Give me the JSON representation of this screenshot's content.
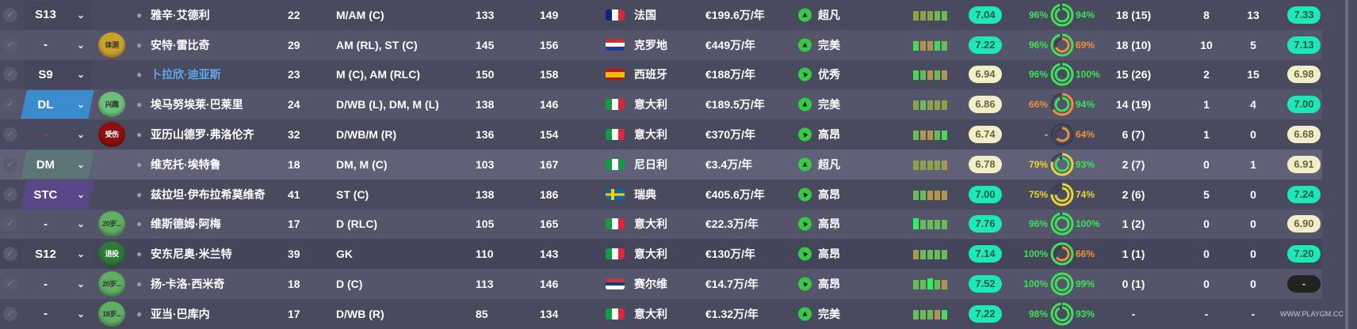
{
  "colors": {
    "rating_high": "#1de9b6",
    "rating_mid": "#f4eec8",
    "rating_none": "#222",
    "green": "#3fe05a",
    "yellow": "#e6d43a",
    "orange": "#f0903a",
    "name_highlight": "#5aa8ee"
  },
  "watermark": "WWW.PLAYGM.CC",
  "rows": [
    {
      "sel": "S13",
      "sel_style": "plain",
      "badge": "",
      "name": "雅辛·艾德利",
      "age": "22",
      "pos": "M/AM (C)",
      "ca": "133",
      "pa": "149",
      "flag": "france",
      "nation": "法国",
      "wage": "€199.6万/年",
      "morale_icon": "arrow-up",
      "morale": "超凡",
      "form": [
        "o",
        "o",
        "o",
        "l",
        "l"
      ],
      "rating": "7.04",
      "pct1": "96%",
      "ring1": 96,
      "pct2": "94%",
      "ring2": 94,
      "apps": "18 (15)",
      "goals": "8",
      "assists": "13",
      "avg": "7.33"
    },
    {
      "sel": "-",
      "sel_style": "none",
      "badge": "体测",
      "badge_color": "gold",
      "name": "安特·雷比奇",
      "age": "29",
      "pos": "AM (RL), ST (C)",
      "ca": "145",
      "pa": "156",
      "flag": "croatia",
      "nation": "克罗地",
      "wage": "€449万/年",
      "morale_icon": "arrow-up",
      "morale": "完美",
      "form": [
        "g",
        "t",
        "t",
        "g",
        "l"
      ],
      "rating": "7.22",
      "pct1": "96%",
      "ring1": 96,
      "pct2": "69%",
      "ring2": 69,
      "apps": "18 (10)",
      "goals": "10",
      "assists": "5",
      "avg": "7.13"
    },
    {
      "sel": "S9",
      "sel_style": "plain",
      "badge": "",
      "name": "卜拉欣·迪亚斯",
      "name_hl": true,
      "age": "23",
      "pos": "M (C), AM (RLC)",
      "ca": "150",
      "pa": "158",
      "flag": "spain",
      "nation": "西班牙",
      "wage": "€188万/年",
      "morale_icon": "arrow-diag",
      "morale": "优秀",
      "form": [
        "g",
        "l",
        "t",
        "l",
        "t"
      ],
      "rating": "6.94",
      "pct1": "96%",
      "ring1": 96,
      "pct2": "100%",
      "ring2": 100,
      "apps": "15 (26)",
      "goals": "2",
      "assists": "15",
      "avg": "6.98"
    },
    {
      "sel": "DL",
      "sel_style": "blue",
      "badge": "兴趣",
      "badge_color": "lightgreen",
      "name": "埃马努埃莱·巴莱里",
      "age": "24",
      "pos": "D/WB (L), DM, M (L)",
      "ca": "138",
      "pa": "146",
      "flag": "italy",
      "nation": "意大利",
      "wage": "€189.5万/年",
      "morale_icon": "arrow-up",
      "morale": "完美",
      "form": [
        "o",
        "l",
        "o",
        "o",
        "o"
      ],
      "rating": "6.86",
      "pct1": "66%",
      "ring1": 66,
      "pct2": "94%",
      "ring2": 94,
      "apps": "14 (19)",
      "goals": "1",
      "assists": "4",
      "avg": "7.00"
    },
    {
      "sel": "-",
      "sel_style": "red",
      "badge": "受伤",
      "badge_color": "red",
      "name": "亚历山德罗·弗洛伦齐",
      "age": "32",
      "pos": "D/WB/M (R)",
      "ca": "136",
      "pa": "154",
      "flag": "italy",
      "nation": "意大利",
      "wage": "€370万/年",
      "morale_icon": "arrow-diag",
      "morale": "高昂",
      "form": [
        "l",
        "t",
        "t",
        "l",
        "g"
      ],
      "rating": "6.74",
      "pct1": "-",
      "ring1": 0,
      "pct2": "64%",
      "ring2": 64,
      "apps": "6 (7)",
      "goals": "1",
      "assists": "0",
      "avg": "6.68"
    },
    {
      "sel": "DM",
      "sel_style": "teal",
      "badge": "",
      "name": "维克托·埃特鲁",
      "age": "18",
      "pos": "DM, M (C)",
      "ca": "103",
      "pa": "167",
      "flag": "nigeria",
      "nation": "尼日利",
      "wage": "€3.4万/年",
      "morale_icon": "arrow-up",
      "morale": "超凡",
      "form": [
        "o",
        "o",
        "o",
        "o",
        "t"
      ],
      "rating": "6.78",
      "pct1": "79%",
      "ring1": 79,
      "pct2": "93%",
      "ring2": 93,
      "apps": "2 (7)",
      "goals": "0",
      "assists": "1",
      "avg": "6.91"
    },
    {
      "sel": "STC",
      "sel_style": "purple",
      "badge": "",
      "name": "兹拉坦·伊布拉希莫维奇",
      "age": "41",
      "pos": "ST (C)",
      "ca": "138",
      "pa": "186",
      "flag": "sweden",
      "nation": "瑞典",
      "wage": "€405.6万/年",
      "morale_icon": "arrow-diag",
      "morale": "高昂",
      "form": [
        "l",
        "l",
        "t",
        "t",
        "t"
      ],
      "rating": "7.00",
      "pct1": "75%",
      "ring1": 75,
      "pct2": "74%",
      "ring2": 74,
      "apps": "2 (6)",
      "goals": "5",
      "assists": "0",
      "avg": "7.24"
    },
    {
      "sel": "-",
      "sel_style": "none",
      "badge": "20岁...",
      "badge_color": "green",
      "name": "维斯德姆·阿梅",
      "age": "17",
      "pos": "D (RLC)",
      "ca": "105",
      "pa": "165",
      "flag": "italy",
      "nation": "意大利",
      "wage": "€22.3万/年",
      "morale_icon": "arrow-diag",
      "morale": "高昂",
      "form": [
        "G",
        "l",
        "l",
        "l",
        "l"
      ],
      "rating": "7.76",
      "pct1": "96%",
      "ring1": 96,
      "pct2": "100%",
      "ring2": 100,
      "apps": "1 (2)",
      "goals": "0",
      "assists": "0",
      "avg": "6.90"
    },
    {
      "sel": "S12",
      "sel_style": "plain",
      "badge": "退役",
      "badge_color": "darkgreen",
      "name": "安东尼奥·米兰特",
      "age": "39",
      "pos": "GK",
      "ca": "110",
      "pa": "143",
      "flag": "italy",
      "nation": "意大利",
      "wage": "€130万/年",
      "morale_icon": "arrow-diag",
      "morale": "高昂",
      "form": [
        "t",
        "l",
        "l",
        "l",
        "l"
      ],
      "rating": "7.14",
      "pct1": "100%",
      "ring1": 100,
      "pct2": "66%",
      "ring2": 66,
      "apps": "1 (1)",
      "goals": "0",
      "assists": "0",
      "avg": "7.20"
    },
    {
      "sel": "-",
      "sel_style": "none",
      "badge": "20岁...",
      "badge_color": "green",
      "name": "扬-卡洛·西米奇",
      "age": "18",
      "pos": "D (C)",
      "ca": "113",
      "pa": "146",
      "flag": "serbia",
      "nation": "赛尔维",
      "wage": "€14.7万/年",
      "morale_icon": "arrow-diag",
      "morale": "高昂",
      "form": [
        "l",
        "l",
        "G",
        "l",
        "t"
      ],
      "rating": "7.52",
      "pct1": "100%",
      "ring1": 100,
      "pct2": "99%",
      "ring2": 99,
      "apps": "0 (1)",
      "goals": "0",
      "assists": "0",
      "avg": "-"
    },
    {
      "sel": "-",
      "sel_style": "none",
      "badge": "18岁...",
      "badge_color": "green",
      "name": "亚当·巴库内",
      "age": "17",
      "pos": "D/WB (R)",
      "ca": "85",
      "pa": "134",
      "flag": "italy",
      "nation": "意大利",
      "wage": "€1.32万/年",
      "morale_icon": "arrow-up",
      "morale": "完美",
      "form": [
        "l",
        "l",
        "l",
        "t",
        "g"
      ],
      "rating": "7.22",
      "pct1": "98%",
      "ring1": 98,
      "pct2": "93%",
      "ring2": 93,
      "apps": "-",
      "goals": "-",
      "assists": "-",
      "avg": ""
    }
  ]
}
